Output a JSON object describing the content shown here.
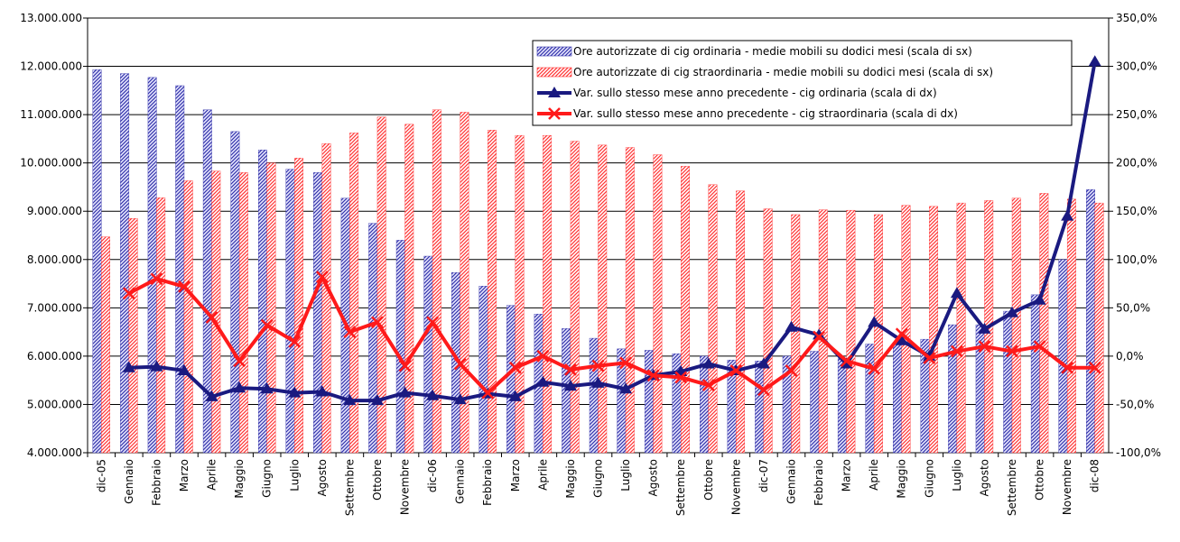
{
  "chart_data": {
    "type": "bar-line",
    "categories": [
      "dic-05",
      "Gennaio",
      "Febbraio",
      "Marzo",
      "Aprile",
      "Maggio",
      "Giugno",
      "Luglio",
      "Agosto",
      "Settembre",
      "Ottobre",
      "Novembre",
      "dic-06",
      "Gennaio",
      "Febbraio",
      "Marzo",
      "Aprile",
      "Maggio",
      "Giugno",
      "Luglio",
      "Agosto",
      "Settembre",
      "Ottobre",
      "Novembre",
      "dic-07",
      "Gennaio",
      "Febbraio",
      "Marzo",
      "Aprile",
      "Maggio",
      "Giugno",
      "Luglio",
      "Agosto",
      "Settembre",
      "Ottobre",
      "Novembre",
      "dic-08"
    ],
    "series": [
      {
        "name": "Ore autorizzate di cig ordinaria - medie mobili su dodici mesi (scala di sx)",
        "kind": "bar",
        "color": "#3333aa",
        "values": [
          11930000,
          11850000,
          11770000,
          11600000,
          11100000,
          10650000,
          10270000,
          9870000,
          9800000,
          9270000,
          8750000,
          8400000,
          8070000,
          7730000,
          7450000,
          7050000,
          6870000,
          6570000,
          6370000,
          6150000,
          6120000,
          6050000,
          6000000,
          5920000,
          5900000,
          6000000,
          6100000,
          5950000,
          6250000,
          6250000,
          6350000,
          6650000,
          6650000,
          6930000,
          7270000,
          8000000,
          9450000
        ]
      },
      {
        "name": "Ore autorizzate di cig straordinaria - medie mobili su dodici mesi (scala di sx)",
        "kind": "bar",
        "color": "#ff3333",
        "values": [
          8470000,
          8850000,
          9280000,
          9630000,
          9830000,
          9800000,
          10000000,
          10100000,
          10400000,
          10620000,
          10950000,
          10800000,
          11100000,
          11050000,
          10680000,
          10570000,
          10570000,
          10450000,
          10370000,
          10320000,
          10170000,
          9930000,
          9550000,
          9420000,
          9050000,
          8930000,
          9030000,
          9020000,
          8930000,
          9120000,
          9100000,
          9170000,
          9220000,
          9270000,
          9370000,
          9250000,
          9170000
        ]
      },
      {
        "name": "Var. sullo stesso mese anno precedente - cig ordinaria (scala di dx)",
        "kind": "line",
        "marker": "triangle",
        "axis": "y2",
        "color": "#1a1a80",
        "values": [
          null,
          -12,
          -11,
          -15,
          -42,
          -33,
          -34,
          -38,
          -37,
          -46,
          -46,
          -38,
          -41,
          -45,
          -39,
          -42,
          -27,
          -31,
          -28,
          -34,
          -20,
          -16,
          -8,
          -15,
          -8,
          30,
          22,
          -8,
          35,
          16,
          0,
          65,
          28,
          45,
          58,
          145,
          305
        ]
      },
      {
        "name": "Var. sullo stesso mese anno precedente - cig straordinaria (scala di dx)",
        "kind": "line",
        "marker": "x",
        "axis": "y2",
        "color": "#ff1a1a",
        "values": [
          null,
          65,
          80,
          72,
          40,
          -5,
          32,
          15,
          82,
          25,
          35,
          -10,
          35,
          -8,
          -38,
          -12,
          0,
          -14,
          -10,
          -7,
          -20,
          -22,
          -30,
          -15,
          -35,
          -15,
          20,
          -5,
          -13,
          23,
          -2,
          5,
          10,
          5,
          10,
          -12,
          -12
        ]
      }
    ],
    "ylim": [
      4000000,
      13000000
    ],
    "yticks": [
      {
        "value": 4000000,
        "label": "4.000.000"
      },
      {
        "value": 5000000,
        "label": "5.000.000"
      },
      {
        "value": 6000000,
        "label": "6.000.000"
      },
      {
        "value": 7000000,
        "label": "7.000.000"
      },
      {
        "value": 8000000,
        "label": "8.000.000"
      },
      {
        "value": 9000000,
        "label": "9.000.000"
      },
      {
        "value": 10000000,
        "label": "10.000.000"
      },
      {
        "value": 11000000,
        "label": "11.000.000"
      },
      {
        "value": 12000000,
        "label": "12.000.000"
      },
      {
        "value": 13000000,
        "label": "13.000.000"
      }
    ],
    "y2lim": [
      -100,
      350
    ],
    "y2ticks": [
      {
        "value": -100,
        "label": "-100,0%"
      },
      {
        "value": -50,
        "label": "-50,0%"
      },
      {
        "value": 0,
        "label": "0,0%"
      },
      {
        "value": 50,
        "label": "50,0%"
      },
      {
        "value": 100,
        "label": "100,0%"
      },
      {
        "value": 150,
        "label": "150,0%"
      },
      {
        "value": 200,
        "label": "200,0%"
      },
      {
        "value": 250,
        "label": "250,0%"
      },
      {
        "value": 300,
        "label": "300,0%"
      },
      {
        "value": 350,
        "label": "350,0%"
      }
    ],
    "grid": true,
    "legend": "upper right"
  }
}
